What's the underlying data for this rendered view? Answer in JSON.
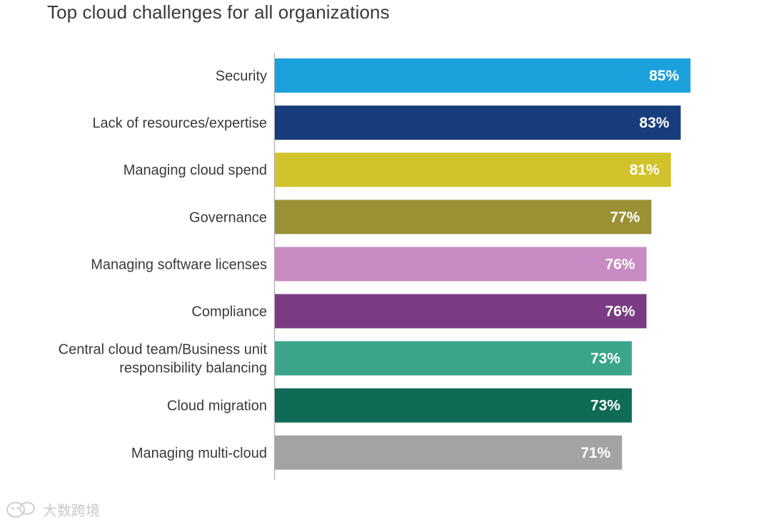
{
  "chart_data": {
    "type": "bar",
    "orientation": "horizontal",
    "title": "Top cloud challenges for all organizations",
    "categories": [
      "Security",
      "Lack of resources/expertise",
      "Managing cloud spend",
      "Governance",
      "Managing software licenses",
      "Compliance",
      "Central cloud team/Business unit responsibility balancing",
      "Cloud migration",
      "Managing multi-cloud"
    ],
    "category_lines": [
      [
        "Security"
      ],
      [
        "Lack of resources/expertise"
      ],
      [
        "Managing cloud spend"
      ],
      [
        "Governance"
      ],
      [
        "Managing software licenses"
      ],
      [
        "Compliance"
      ],
      [
        "Central cloud team/Business unit",
        "responsibility balancing"
      ],
      [
        "Cloud migration"
      ],
      [
        "Managing multi-cloud"
      ]
    ],
    "values": [
      85,
      83,
      81,
      77,
      76,
      76,
      73,
      73,
      71
    ],
    "value_labels": [
      "85%",
      "83%",
      "81%",
      "77%",
      "76%",
      "76%",
      "73%",
      "73%",
      "71%"
    ],
    "colors": [
      "#1ba1dc",
      "#183d7c",
      "#d2c32c",
      "#9a9135",
      "#c98bc3",
      "#7b3b82",
      "#3aa58b",
      "#0f6b55",
      "#a3a3a3"
    ],
    "xlim": [
      0,
      100
    ],
    "grid": false,
    "legend": "none",
    "axis_line_color": "#b8b8b8",
    "label_color": "#3a3a3a"
  },
  "watermark": {
    "text": "大数跨境",
    "icon": "wechat-logo-icon"
  }
}
